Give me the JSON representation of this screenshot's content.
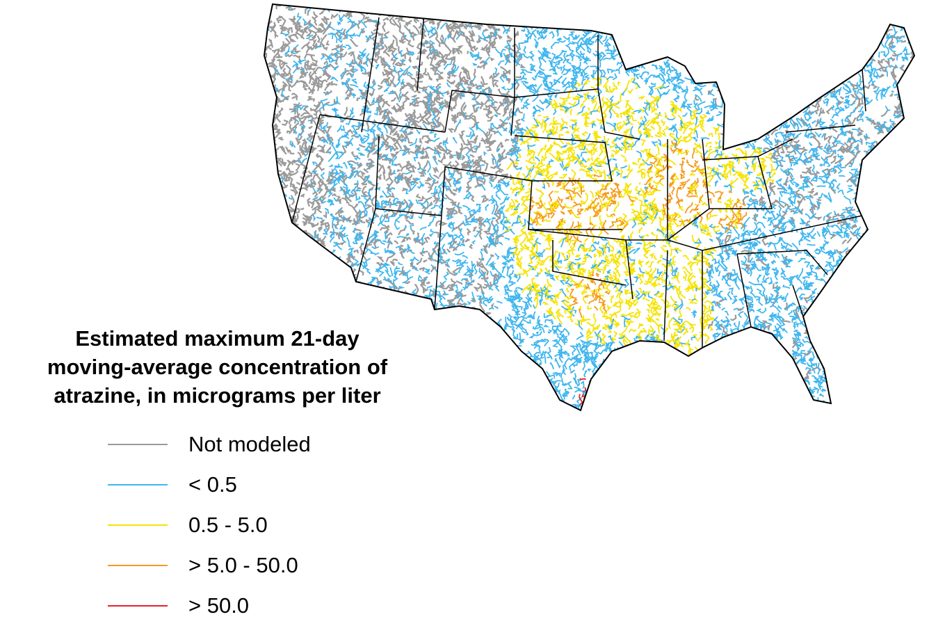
{
  "title_lines": [
    "Estimated maximum 21-day",
    "moving-average concentration of",
    "atrazine, in micrograms per liter"
  ],
  "legend": [
    {
      "label": "Not modeled",
      "color": "#9a9a9a"
    },
    {
      "label": "< 0.5",
      "color": "#3fb6ee"
    },
    {
      "label": "0.5 - 5.0",
      "color": "#f5e400"
    },
    {
      "label": "> 5.0 - 50.0",
      "color": "#f59a1e"
    },
    {
      "label": "> 50.0",
      "color": "#e8202a"
    }
  ],
  "map": {
    "region": "Conterminous United States",
    "feature": "stream network colored by concentration class"
  }
}
